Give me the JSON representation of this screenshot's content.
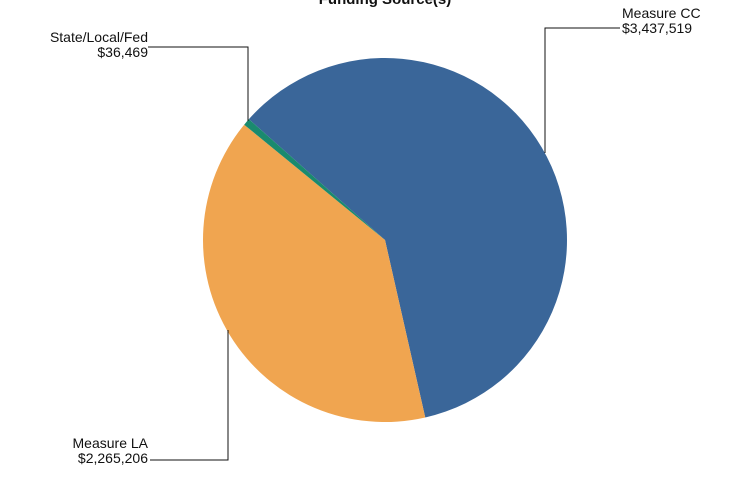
{
  "chart_data": {
    "type": "pie",
    "title": "Funding Source(s)",
    "categories": [
      "Measure CC",
      "Measure LA",
      "State/Local/Fed"
    ],
    "values": [
      3437519,
      2265206,
      36469
    ],
    "value_labels": [
      "$3,437,519",
      "$2,265,206",
      "$36,469"
    ],
    "colors": [
      "#3a6699",
      "#f0a550",
      "#1a8a6e"
    ]
  }
}
